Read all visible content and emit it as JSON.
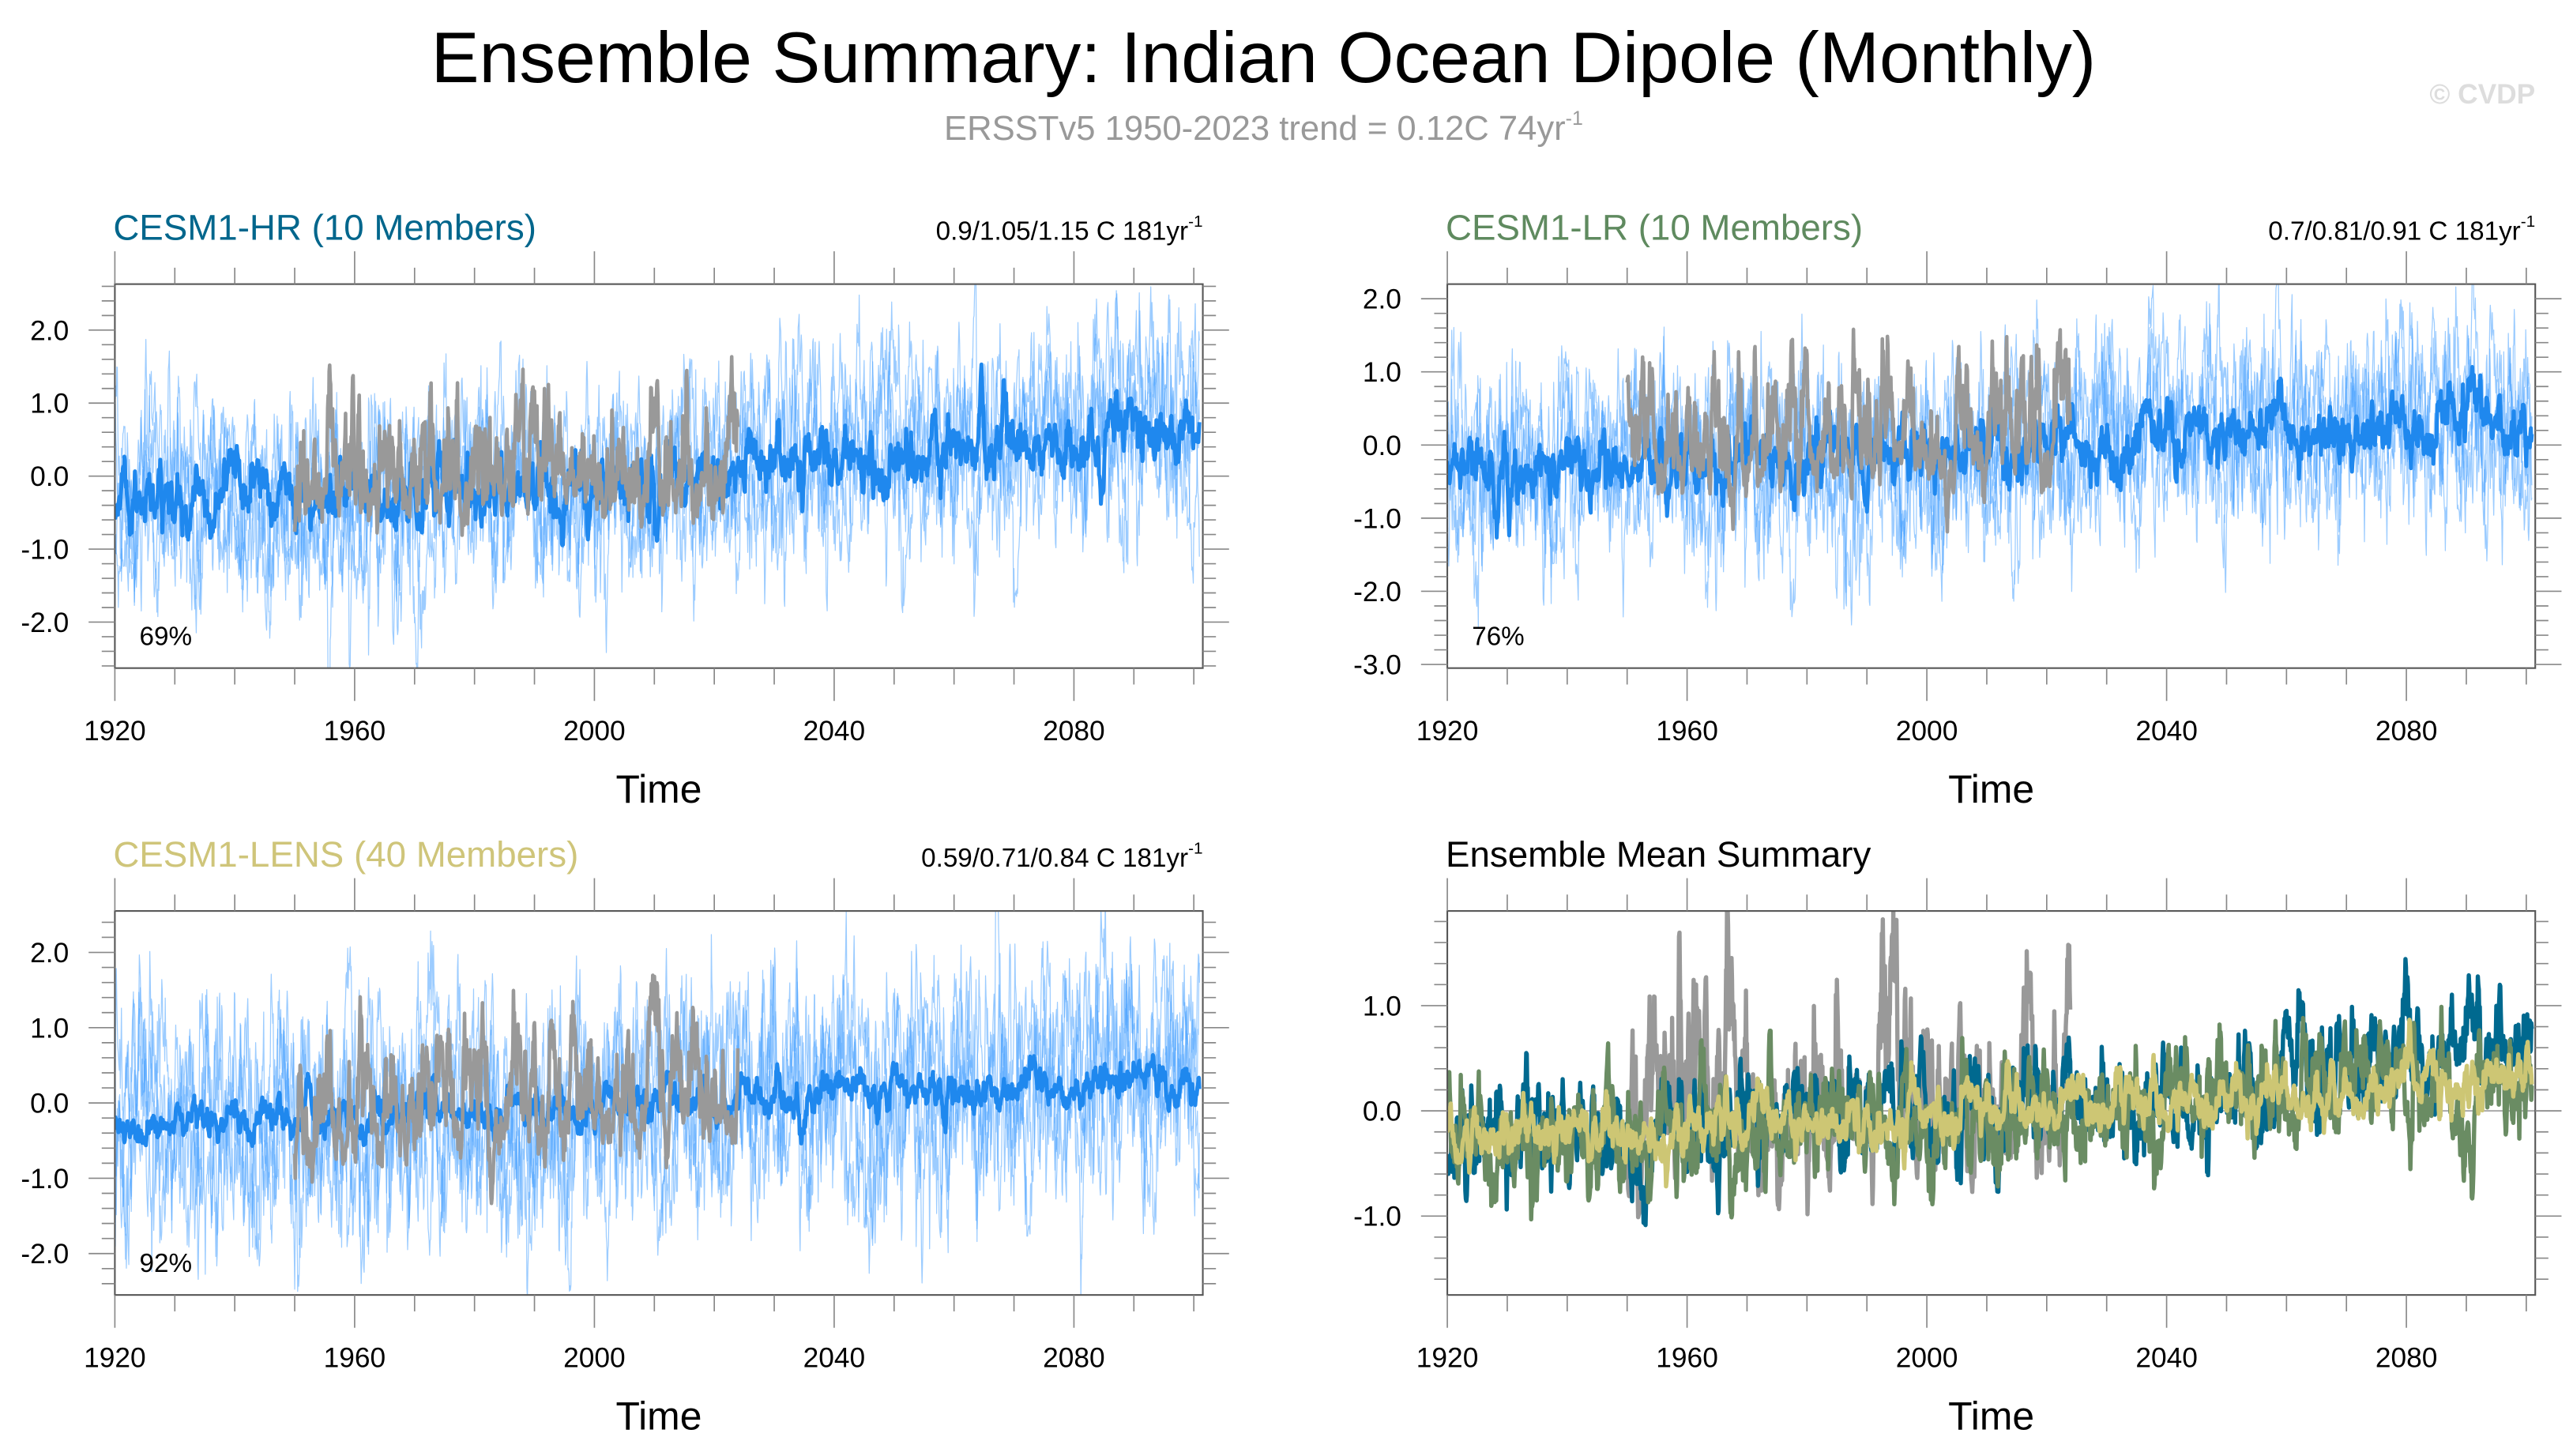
{
  "header": {
    "title": "Ensemble Summary: Indian Ocean Dipole (Monthly)",
    "subtitle": "ERSSTv5 1950-2023 trend = 0.12C 74yr",
    "subtitle_sup": "-1",
    "watermark": "© CVDP"
  },
  "chart_data": [
    {
      "type": "line",
      "title": "CESM1-HR (10 Members)",
      "title_color": "#00668c",
      "stats": "0.9/1.05/1.15 C 181yr",
      "stats_sup": "-1",
      "percent": "69%",
      "xlabel": "Time",
      "xlim": [
        1920,
        2101.5
      ],
      "ylim": [
        -2.63,
        2.63
      ],
      "xticks": [
        1920,
        1960,
        2000,
        2040,
        2080
      ],
      "xtick_labels": [
        "1920",
        "1960",
        "2000",
        "2040",
        "2080"
      ],
      "yticks": [
        2,
        1,
        0,
        -1,
        -2
      ],
      "ytick_labels": [
        "2.0",
        "1.0",
        "0.0",
        "-1.0",
        "-2.0"
      ],
      "series": [
        {
          "name": "member spread",
          "role": "spread",
          "color": "#4aa3ff",
          "years": [
            1920,
            2100
          ],
          "trend_years": [
            1920,
            1960,
            2000,
            2040,
            2080,
            2100
          ],
          "trend_values": [
            -0.35,
            -0.2,
            -0.1,
            0.2,
            0.5,
            0.7
          ],
          "noise_sd": 0.7
        },
        {
          "name": "ensemble mean",
          "role": "mean",
          "color": "#1f88ee",
          "years": [
            1920,
            2100
          ],
          "trend_years": [
            1920,
            1960,
            2000,
            2040,
            2080,
            2100
          ],
          "trend_values": [
            -0.35,
            -0.2,
            -0.1,
            0.2,
            0.5,
            0.7
          ],
          "noise_sd": 0.25
        },
        {
          "name": "ERSSTv5",
          "role": "obs",
          "color": "#999999",
          "years": [
            1950,
            2023
          ],
          "trend_years": [
            1950,
            2023
          ],
          "trend_values": [
            -0.15,
            0.05
          ],
          "noise_sd": 0.35
        }
      ]
    },
    {
      "type": "line",
      "title": "CESM1-LR (10 Members)",
      "title_color": "#5f8a5f",
      "stats": "0.7/0.81/0.91 C 181yr",
      "stats_sup": "-1",
      "percent": "76%",
      "xlabel": "Time",
      "xlim": [
        1920,
        2101.5
      ],
      "ylim": [
        -3.05,
        2.2
      ],
      "xticks": [
        1920,
        1960,
        2000,
        2040,
        2080
      ],
      "xtick_labels": [
        "1920",
        "1960",
        "2000",
        "2040",
        "2080"
      ],
      "yticks": [
        2,
        1,
        0,
        -1,
        -2,
        -3
      ],
      "ytick_labels": [
        "2.0",
        "1.0",
        "0.0",
        "-1.0",
        "-2.0",
        "-3.0"
      ],
      "series": [
        {
          "name": "member spread",
          "role": "spread",
          "color": "#4aa3ff",
          "years": [
            1920,
            2100
          ],
          "trend_years": [
            1920,
            1960,
            2000,
            2040,
            2080,
            2100
          ],
          "trend_values": [
            -0.3,
            -0.2,
            -0.1,
            0.1,
            0.25,
            0.3
          ],
          "noise_sd": 0.7
        },
        {
          "name": "ensemble mean",
          "role": "mean",
          "color": "#1f88ee",
          "years": [
            1920,
            2100
          ],
          "trend_years": [
            1920,
            1960,
            2000,
            2040,
            2080,
            2100
          ],
          "trend_values": [
            -0.3,
            -0.2,
            -0.1,
            0.1,
            0.25,
            0.3
          ],
          "noise_sd": 0.25
        },
        {
          "name": "ERSSTv5",
          "role": "obs",
          "color": "#999999",
          "years": [
            1950,
            2023
          ],
          "trend_years": [
            1950,
            2023
          ],
          "trend_values": [
            -0.15,
            0.05
          ],
          "noise_sd": 0.35
        }
      ]
    },
    {
      "type": "line",
      "title": "CESM1-LENS (40 Members)",
      "title_color": "#cfc57a",
      "stats": "0.59/0.71/0.84 C 181yr",
      "stats_sup": "-1",
      "percent": "92%",
      "xlabel": "Time",
      "xlim": [
        1920,
        2101.5
      ],
      "ylim": [
        -2.55,
        2.55
      ],
      "xticks": [
        1920,
        1960,
        2000,
        2040,
        2080
      ],
      "xtick_labels": [
        "1920",
        "1960",
        "2000",
        "2040",
        "2080"
      ],
      "yticks": [
        2,
        1,
        0,
        -1,
        -2
      ],
      "ytick_labels": [
        "2.0",
        "1.0",
        "0.0",
        "-1.0",
        "-2.0"
      ],
      "series": [
        {
          "name": "member spread",
          "role": "spread",
          "color": "#4aa3ff",
          "years": [
            1920,
            2100
          ],
          "trend_years": [
            1920,
            1960,
            2000,
            2040,
            2080,
            2100
          ],
          "trend_values": [
            -0.25,
            -0.15,
            -0.05,
            0.1,
            0.25,
            0.3
          ],
          "noise_sd": 0.8
        },
        {
          "name": "ensemble mean",
          "role": "mean",
          "color": "#1f88ee",
          "years": [
            1920,
            2100
          ],
          "trend_years": [
            1920,
            1960,
            2000,
            2040,
            2080,
            2100
          ],
          "trend_values": [
            -0.25,
            -0.15,
            -0.05,
            0.1,
            0.25,
            0.3
          ],
          "noise_sd": 0.15
        },
        {
          "name": "ERSSTv5",
          "role": "obs",
          "color": "#999999",
          "years": [
            1950,
            2023
          ],
          "trend_years": [
            1950,
            2023
          ],
          "trend_values": [
            -0.15,
            0.05
          ],
          "noise_sd": 0.35
        }
      ]
    },
    {
      "type": "line",
      "title": "Ensemble Mean Summary",
      "title_color": "#000000",
      "xlabel": "Time",
      "xlim": [
        1920,
        2101.5
      ],
      "ylim": [
        -1.75,
        1.9
      ],
      "xticks": [
        1920,
        1960,
        2000,
        2040,
        2080
      ],
      "xtick_labels": [
        "1920",
        "1960",
        "2000",
        "2040",
        "2080"
      ],
      "yticks": [
        1,
        0,
        -1
      ],
      "ytick_labels": [
        "1.0",
        "0.0",
        "-1.0"
      ],
      "series": [
        {
          "name": "ERSSTv5",
          "role": "thick",
          "color": "#999999",
          "years": [
            1950,
            2023
          ],
          "trend_years": [
            1950,
            2023
          ],
          "trend_values": [
            -0.15,
            0.05
          ],
          "noise_sd": 0.35
        },
        {
          "name": "CESM1-HR",
          "role": "thick",
          "color": "#00698f",
          "years": [
            1920,
            2100
          ],
          "trend_years": [
            1920,
            1960,
            2000,
            2040,
            2080,
            2100
          ],
          "trend_values": [
            -0.35,
            -0.2,
            -0.1,
            0.2,
            0.5,
            0.7
          ],
          "noise_sd": 0.28
        },
        {
          "name": "CESM1-LR",
          "role": "thick",
          "color": "#6a8c63",
          "years": [
            1920,
            2100
          ],
          "trend_years": [
            1920,
            1960,
            2000,
            2040,
            2080,
            2100
          ],
          "trend_values": [
            -0.3,
            -0.2,
            -0.1,
            0.1,
            0.25,
            0.3
          ],
          "noise_sd": 0.28
        },
        {
          "name": "CESM1-LENS",
          "role": "thick",
          "color": "#cdc674",
          "years": [
            1920,
            2100
          ],
          "trend_years": [
            1920,
            1960,
            2000,
            2040,
            2080,
            2100
          ],
          "trend_values": [
            -0.25,
            -0.15,
            -0.05,
            0.1,
            0.25,
            0.3
          ],
          "noise_sd": 0.15
        }
      ]
    }
  ]
}
